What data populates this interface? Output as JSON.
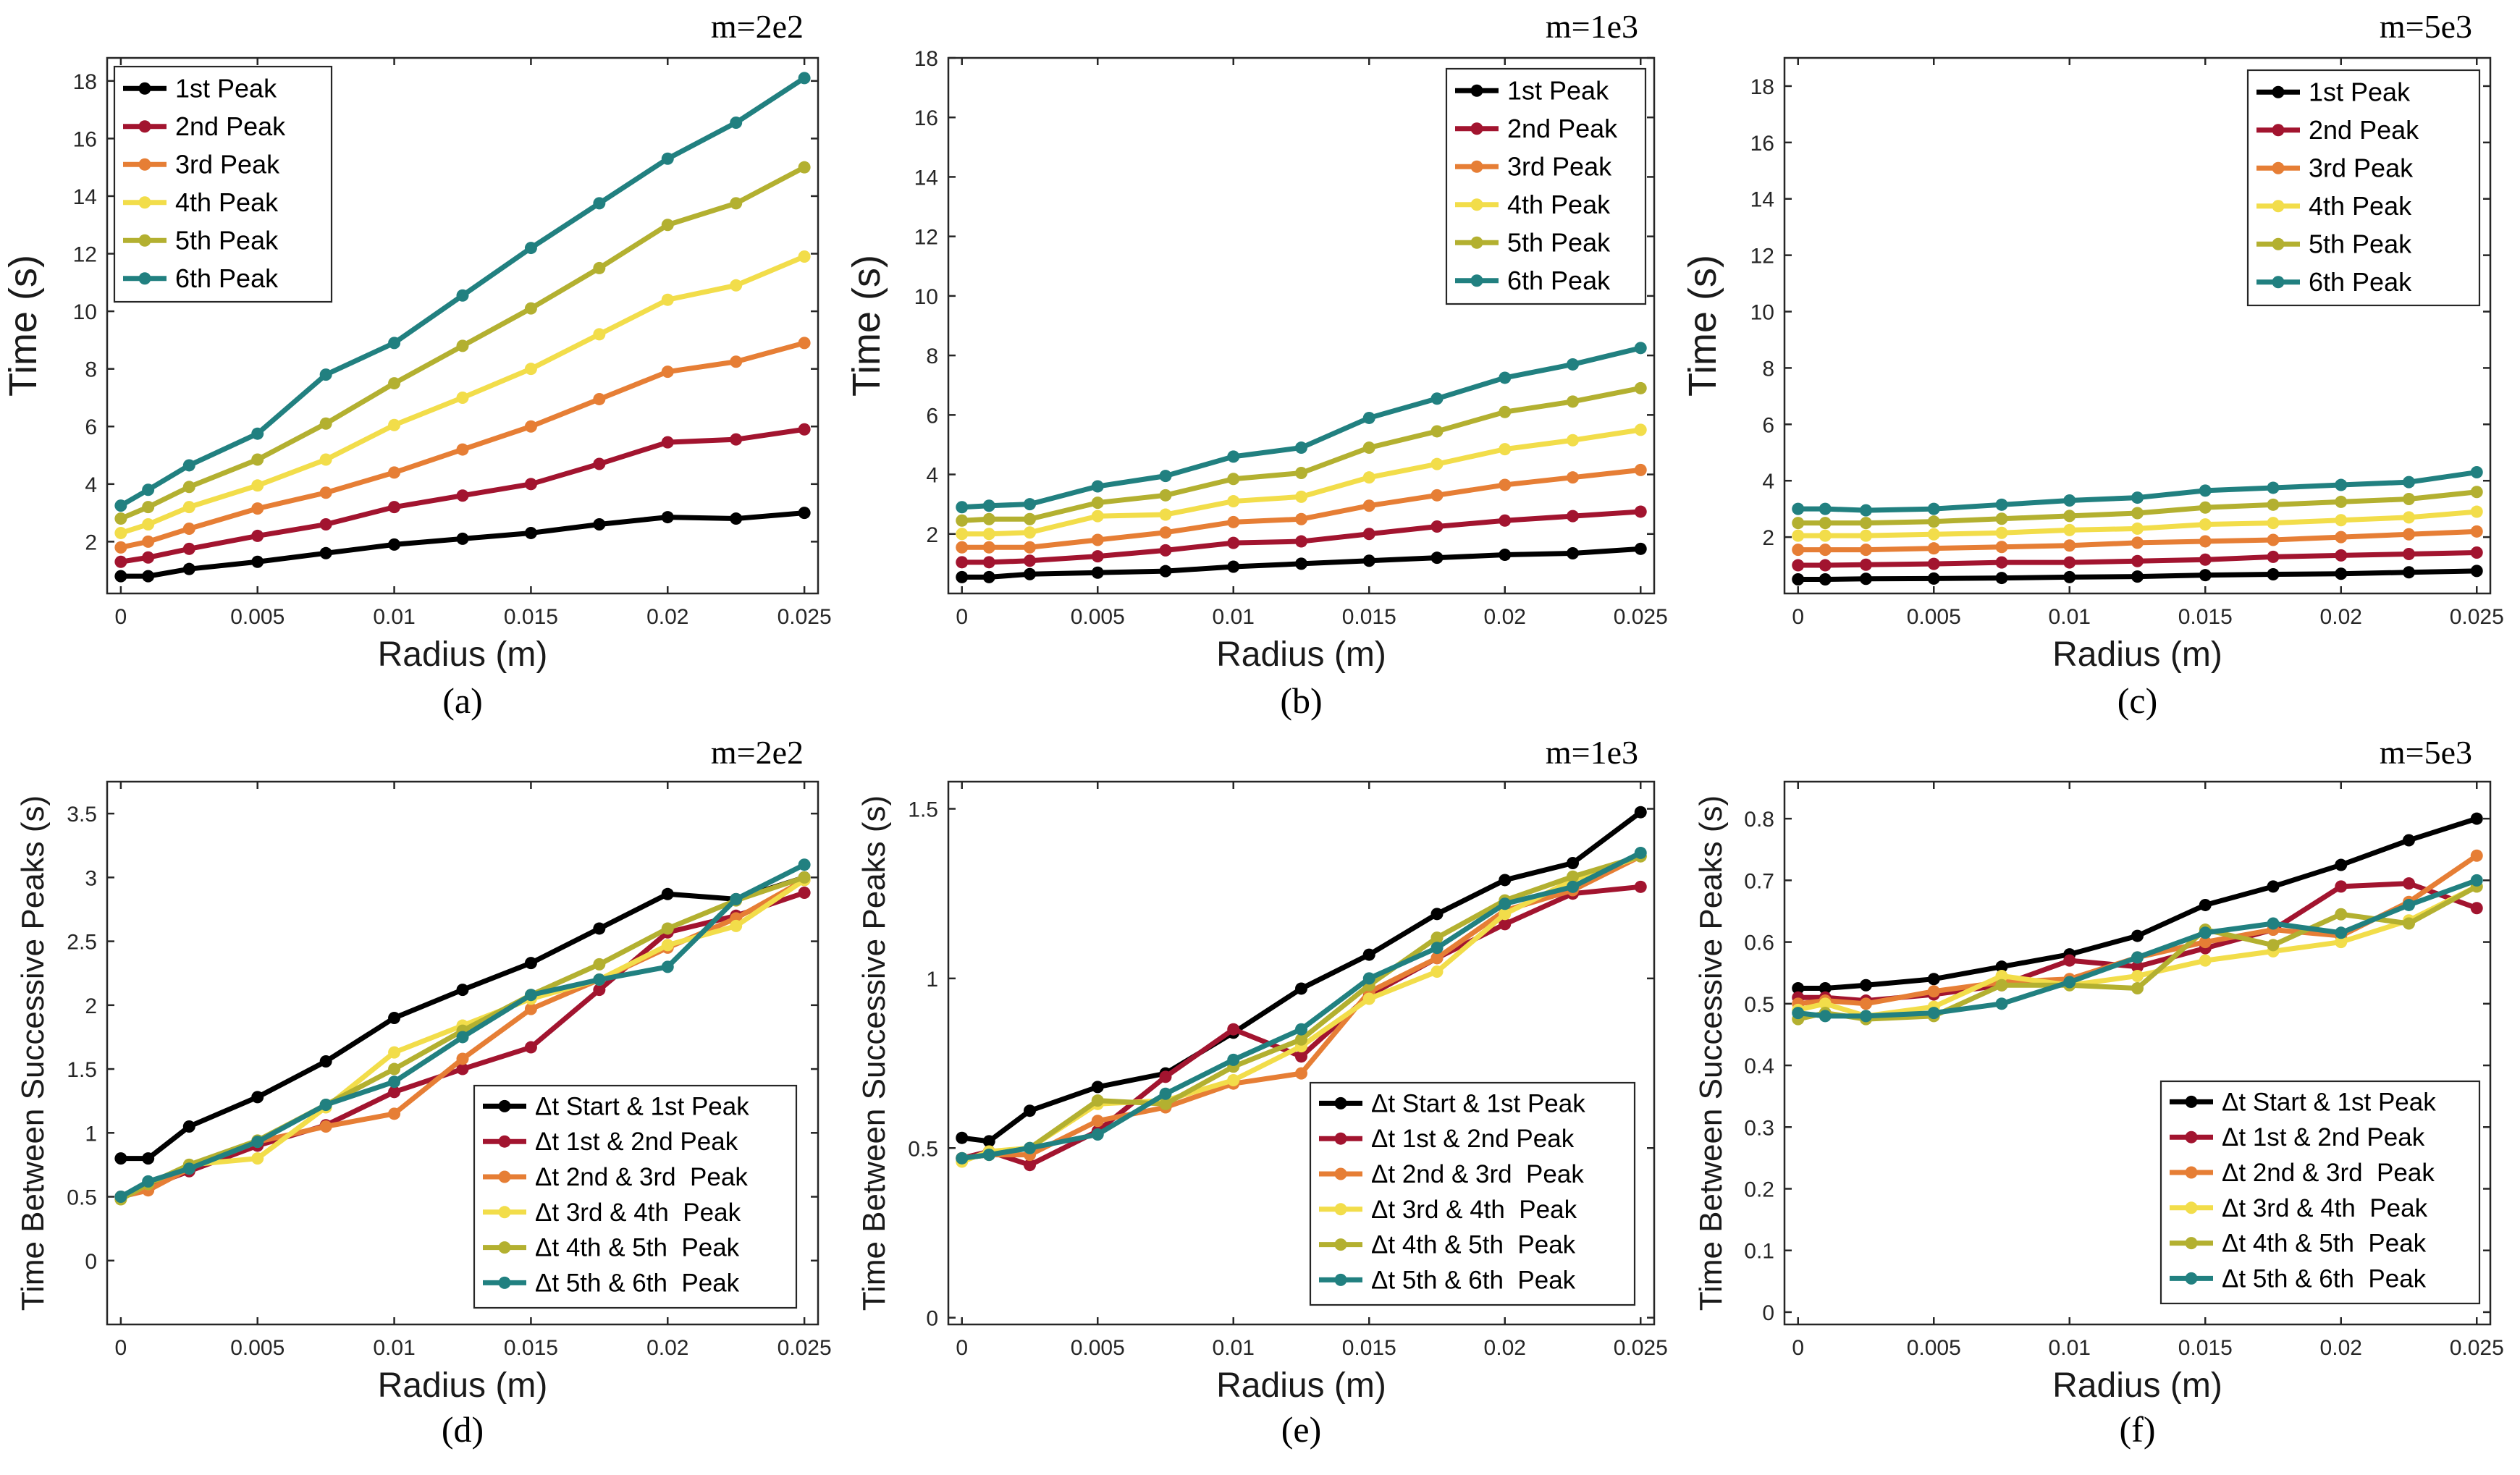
{
  "colors": {
    "black": "#000000",
    "crimson": "#a2142f",
    "orange": "#e67e35",
    "yellow": "#f2dd4a",
    "olive": "#b3b030",
    "teal": "#218080",
    "axis": "#262626",
    "tick_text": "#262626"
  },
  "chart_data": [
    {
      "type": "line",
      "panel": "(a)",
      "title": "m=2e2",
      "xlabel": "Radius (m)",
      "ylabel": "Time (s)",
      "xlim": [
        -0.0005,
        0.0255
      ],
      "ylim": [
        0.2,
        18.8
      ],
      "xticks": [
        0,
        0.005,
        0.01,
        0.015,
        0.02,
        0.025
      ],
      "xtick_labels": [
        "0",
        "0.005",
        "0.01",
        "0.015",
        "0.02",
        "0.025"
      ],
      "yticks": [
        2,
        4,
        6,
        8,
        10,
        12,
        14,
        16,
        18
      ],
      "ytick_labels": [
        "2",
        "4",
        "6",
        "8",
        "10",
        "12",
        "14",
        "16",
        "18"
      ],
      "legend": "top-left",
      "x": [
        0,
        0.001,
        0.0025,
        0.005,
        0.0075,
        0.01,
        0.0125,
        0.015,
        0.0175,
        0.02,
        0.0225,
        0.025
      ],
      "series": [
        {
          "name": "1st Peak",
          "color": "black",
          "values": [
            0.8,
            0.8,
            1.05,
            1.3,
            1.6,
            1.9,
            2.1,
            2.3,
            2.6,
            2.85,
            2.8,
            3.0
          ]
        },
        {
          "name": "2nd Peak",
          "color": "crimson",
          "values": [
            1.3,
            1.45,
            1.75,
            2.2,
            2.6,
            3.2,
            3.6,
            4.0,
            4.7,
            5.45,
            5.55,
            5.9
          ]
        },
        {
          "name": "3rd Peak",
          "color": "orange",
          "values": [
            1.8,
            2.0,
            2.45,
            3.15,
            3.7,
            4.4,
            5.2,
            6.0,
            6.95,
            7.9,
            8.25,
            8.9
          ]
        },
        {
          "name": "4th Peak",
          "color": "yellow",
          "values": [
            2.3,
            2.6,
            3.2,
            3.95,
            4.85,
            6.05,
            7.0,
            8.0,
            9.2,
            10.4,
            10.9,
            11.9
          ]
        },
        {
          "name": "5th Peak",
          "color": "olive",
          "values": [
            2.8,
            3.2,
            3.9,
            4.85,
            6.1,
            7.5,
            8.8,
            10.1,
            11.5,
            13.0,
            13.75,
            15.0
          ]
        },
        {
          "name": "6th Peak",
          "color": "teal",
          "values": [
            3.25,
            3.8,
            4.65,
            5.75,
            7.8,
            8.9,
            10.55,
            12.2,
            13.75,
            15.3,
            16.55,
            18.1
          ]
        }
      ]
    },
    {
      "type": "line",
      "panel": "(b)",
      "title": "m=1e3",
      "xlabel": "Radius (m)",
      "ylabel": "Time (s)",
      "xlim": [
        -0.0005,
        0.0255
      ],
      "ylim": [
        0,
        18
      ],
      "xticks": [
        0,
        0.005,
        0.01,
        0.015,
        0.02,
        0.025
      ],
      "xtick_labels": [
        "0",
        "0.005",
        "0.01",
        "0.015",
        "0.02",
        "0.025"
      ],
      "yticks": [
        2,
        4,
        6,
        8,
        10,
        12,
        14,
        16,
        18
      ],
      "ytick_labels": [
        "2",
        "4",
        "6",
        "8",
        "10",
        "12",
        "14",
        "16",
        "18"
      ],
      "legend": "top-right",
      "x": [
        0,
        0.001,
        0.0025,
        0.005,
        0.0075,
        0.01,
        0.0125,
        0.015,
        0.0175,
        0.02,
        0.0225,
        0.025
      ],
      "series": [
        {
          "name": "1st Peak",
          "color": "black",
          "values": [
            0.55,
            0.55,
            0.65,
            0.7,
            0.75,
            0.9,
            1.0,
            1.1,
            1.2,
            1.3,
            1.35,
            1.5
          ]
        },
        {
          "name": "2nd Peak",
          "color": "crimson",
          "values": [
            1.05,
            1.05,
            1.1,
            1.25,
            1.45,
            1.7,
            1.75,
            2.0,
            2.25,
            2.45,
            2.6,
            2.75
          ]
        },
        {
          "name": "3rd Peak",
          "color": "orange",
          "values": [
            1.55,
            1.55,
            1.55,
            1.8,
            2.05,
            2.4,
            2.5,
            2.95,
            3.3,
            3.65,
            3.9,
            4.15
          ]
        },
        {
          "name": "4th Peak",
          "color": "yellow",
          "values": [
            2.0,
            2.0,
            2.05,
            2.6,
            2.65,
            3.1,
            3.25,
            3.9,
            4.35,
            4.85,
            5.15,
            5.5
          ]
        },
        {
          "name": "5th Peak",
          "color": "olive",
          "values": [
            2.45,
            2.5,
            2.5,
            3.05,
            3.3,
            3.85,
            4.05,
            4.9,
            5.45,
            6.1,
            6.45,
            6.9
          ]
        },
        {
          "name": "6th Peak",
          "color": "teal",
          "values": [
            2.9,
            2.95,
            3.0,
            3.6,
            3.95,
            4.6,
            4.9,
            5.9,
            6.55,
            7.25,
            7.7,
            8.25
          ]
        }
      ]
    },
    {
      "type": "line",
      "panel": "(c)",
      "title": "m=5e3",
      "xlabel": "Radius (m)",
      "ylabel": "Time (s)",
      "xlim": [
        -0.0005,
        0.0255
      ],
      "ylim": [
        0,
        19
      ],
      "xticks": [
        0,
        0.005,
        0.01,
        0.015,
        0.02,
        0.025
      ],
      "xtick_labels": [
        "0",
        "0.005",
        "0.01",
        "0.015",
        "0.02",
        "0.025"
      ],
      "yticks": [
        2,
        4,
        6,
        8,
        10,
        12,
        14,
        16,
        18
      ],
      "ytick_labels": [
        "2",
        "4",
        "6",
        "8",
        "10",
        "12",
        "14",
        "16",
        "18"
      ],
      "legend": "top-right",
      "x": [
        0,
        0.001,
        0.0025,
        0.005,
        0.0075,
        0.01,
        0.0125,
        0.015,
        0.0175,
        0.02,
        0.0225,
        0.025
      ],
      "series": [
        {
          "name": "1st Peak",
          "color": "black",
          "values": [
            0.5,
            0.5,
            0.52,
            0.53,
            0.55,
            0.58,
            0.6,
            0.65,
            0.68,
            0.7,
            0.75,
            0.8
          ]
        },
        {
          "name": "2nd Peak",
          "color": "crimson",
          "values": [
            1.0,
            1.0,
            1.02,
            1.05,
            1.1,
            1.1,
            1.15,
            1.2,
            1.3,
            1.35,
            1.4,
            1.45
          ]
        },
        {
          "name": "3rd Peak",
          "color": "orange",
          "values": [
            1.55,
            1.55,
            1.55,
            1.6,
            1.65,
            1.7,
            1.8,
            1.85,
            1.9,
            2.0,
            2.1,
            2.2
          ]
        },
        {
          "name": "4th Peak",
          "color": "yellow",
          "values": [
            2.05,
            2.05,
            2.05,
            2.1,
            2.15,
            2.25,
            2.3,
            2.45,
            2.5,
            2.6,
            2.7,
            2.9
          ]
        },
        {
          "name": "5th Peak",
          "color": "olive",
          "values": [
            2.5,
            2.5,
            2.5,
            2.55,
            2.65,
            2.75,
            2.85,
            3.05,
            3.15,
            3.25,
            3.35,
            3.6
          ]
        },
        {
          "name": "6th Peak",
          "color": "teal",
          "values": [
            3.0,
            3.0,
            2.95,
            3.0,
            3.15,
            3.3,
            3.4,
            3.65,
            3.75,
            3.85,
            3.95,
            4.3
          ]
        }
      ]
    },
    {
      "type": "line",
      "panel": "(d)",
      "title": "m=2e2",
      "xlabel": "Radius (m)",
      "ylabel": "Time Between Successive Peaks (s)",
      "xlim": [
        -0.0005,
        0.0255
      ],
      "ylim": [
        -0.5,
        3.75
      ],
      "xticks": [
        0,
        0.005,
        0.01,
        0.015,
        0.02,
        0.025
      ],
      "xtick_labels": [
        "0",
        "0.005",
        "0.01",
        "0.015",
        "0.02",
        "0.025"
      ],
      "yticks": [
        0,
        0.5,
        1,
        1.5,
        2,
        2.5,
        3,
        3.5
      ],
      "ytick_labels": [
        "0",
        "0.5",
        "1",
        "1.5",
        "2",
        "2.5",
        "3",
        "3.5"
      ],
      "legend": "bottom-right",
      "x": [
        0,
        0.001,
        0.0025,
        0.005,
        0.0075,
        0.01,
        0.0125,
        0.015,
        0.0175,
        0.02,
        0.0225,
        0.025
      ],
      "series": [
        {
          "name": "Δt Start & 1st Peak",
          "color": "black",
          "values": [
            0.8,
            0.8,
            1.05,
            1.28,
            1.56,
            1.9,
            2.12,
            2.33,
            2.6,
            2.87,
            2.83,
            3.0
          ]
        },
        {
          "name": "Δt 1st & 2nd Peak",
          "color": "crimson",
          "values": [
            0.5,
            0.58,
            0.7,
            0.9,
            1.06,
            1.32,
            1.5,
            1.67,
            2.12,
            2.57,
            2.7,
            2.88
          ]
        },
        {
          "name": "Δt 2nd & 3rd  Peak",
          "color": "orange",
          "values": [
            0.5,
            0.55,
            0.72,
            0.93,
            1.05,
            1.15,
            1.58,
            1.97,
            2.2,
            2.45,
            2.68,
            2.98
          ]
        },
        {
          "name": "Δt 3rd & 4th  Peak",
          "color": "yellow",
          "values": [
            0.48,
            0.6,
            0.75,
            0.8,
            1.2,
            1.63,
            1.84,
            2.05,
            2.2,
            2.47,
            2.62,
            2.98
          ]
        },
        {
          "name": "Δt 4th & 5th  Peak",
          "color": "olive",
          "values": [
            0.48,
            0.6,
            0.75,
            0.94,
            1.22,
            1.5,
            1.8,
            2.08,
            2.32,
            2.6,
            2.82,
            3.0
          ]
        },
        {
          "name": "Δt 5th & 6th  Peak",
          "color": "teal",
          "values": [
            0.5,
            0.62,
            0.72,
            0.93,
            1.22,
            1.4,
            1.75,
            2.08,
            2.2,
            2.3,
            2.83,
            3.1
          ]
        }
      ]
    },
    {
      "type": "line",
      "panel": "(e)",
      "title": "m=1e3",
      "xlabel": "Radius (m)",
      "ylabel": "Time Between Successive Peaks (s)",
      "xlim": [
        -0.0005,
        0.0255
      ],
      "ylim": [
        -0.02,
        1.58
      ],
      "xticks": [
        0,
        0.005,
        0.01,
        0.015,
        0.02,
        0.025
      ],
      "xtick_labels": [
        "0",
        "0.005",
        "0.01",
        "0.015",
        "0.02",
        "0.025"
      ],
      "yticks": [
        0,
        0.5,
        1,
        1.5
      ],
      "ytick_labels": [
        "0",
        "0.5",
        "1",
        "1.5"
      ],
      "legend": "bottom-right",
      "x": [
        0,
        0.001,
        0.0025,
        0.005,
        0.0075,
        0.01,
        0.0125,
        0.015,
        0.0175,
        0.02,
        0.0225,
        0.025
      ],
      "series": [
        {
          "name": "Δt Start & 1st Peak",
          "color": "black",
          "values": [
            0.53,
            0.52,
            0.61,
            0.68,
            0.72,
            0.84,
            0.97,
            1.07,
            1.19,
            1.29,
            1.34,
            1.49
          ]
        },
        {
          "name": "Δt 1st & 2nd Peak",
          "color": "crimson",
          "values": [
            0.47,
            0.49,
            0.45,
            0.55,
            0.71,
            0.85,
            0.77,
            0.95,
            1.06,
            1.16,
            1.25,
            1.27
          ]
        },
        {
          "name": "Δt 2nd & 3rd  Peak",
          "color": "orange",
          "values": [
            0.47,
            0.48,
            0.48,
            0.58,
            0.62,
            0.69,
            0.72,
            0.96,
            1.06,
            1.2,
            1.26,
            1.36
          ]
        },
        {
          "name": "Δt 3rd & 4th  Peak",
          "color": "yellow",
          "values": [
            0.46,
            0.49,
            0.5,
            0.63,
            0.64,
            0.7,
            0.8,
            0.94,
            1.02,
            1.19,
            1.29,
            1.36
          ]
        },
        {
          "name": "Δt 4th & 5th  Peak",
          "color": "olive",
          "values": [
            0.47,
            0.48,
            0.5,
            0.64,
            0.63,
            0.74,
            0.82,
            0.98,
            1.12,
            1.23,
            1.3,
            1.36
          ]
        },
        {
          "name": "Δt 5th & 6th  Peak",
          "color": "teal",
          "values": [
            0.47,
            0.48,
            0.5,
            0.54,
            0.66,
            0.76,
            0.85,
            1.0,
            1.09,
            1.22,
            1.27,
            1.37
          ]
        }
      ]
    },
    {
      "type": "line",
      "panel": "(f)",
      "title": "m=5e3",
      "xlabel": "Radius (m)",
      "ylabel": "Time Between Successive Peaks (s)",
      "xlim": [
        -0.0005,
        0.0255
      ],
      "ylim": [
        -0.02,
        0.86
      ],
      "xticks": [
        0,
        0.005,
        0.01,
        0.015,
        0.02,
        0.025
      ],
      "xtick_labels": [
        "0",
        "0.005",
        "0.01",
        "0.015",
        "0.02",
        "0.025"
      ],
      "yticks": [
        0,
        0.1,
        0.2,
        0.3,
        0.4,
        0.5,
        0.6,
        0.7,
        0.8
      ],
      "ytick_labels": [
        "0",
        "0.1",
        "0.2",
        "0.3",
        "0.4",
        "0.5",
        "0.6",
        "0.7",
        "0.8"
      ],
      "legend": "bottom-right",
      "x": [
        0,
        0.001,
        0.0025,
        0.005,
        0.0075,
        0.01,
        0.0125,
        0.015,
        0.0175,
        0.02,
        0.0225,
        0.025
      ],
      "series": [
        {
          "name": "Δt Start & 1st Peak",
          "color": "black",
          "values": [
            0.525,
            0.525,
            0.53,
            0.54,
            0.56,
            0.58,
            0.61,
            0.66,
            0.69,
            0.725,
            0.765,
            0.8
          ]
        },
        {
          "name": "Δt 1st & 2nd Peak",
          "color": "crimson",
          "values": [
            0.51,
            0.51,
            0.505,
            0.515,
            0.53,
            0.57,
            0.56,
            0.59,
            0.62,
            0.69,
            0.695,
            0.655
          ]
        },
        {
          "name": "Δt 2nd & 3rd  Peak",
          "color": "orange",
          "values": [
            0.5,
            0.505,
            0.5,
            0.52,
            0.535,
            0.54,
            0.575,
            0.6,
            0.62,
            0.61,
            0.665,
            0.74
          ]
        },
        {
          "name": "Δt 3rd & 4th  Peak",
          "color": "yellow",
          "values": [
            0.49,
            0.5,
            0.48,
            0.495,
            0.545,
            0.53,
            0.545,
            0.57,
            0.585,
            0.6,
            0.635,
            0.69
          ]
        },
        {
          "name": "Δt 4th & 5th  Peak",
          "color": "olive",
          "values": [
            0.475,
            0.485,
            0.475,
            0.48,
            0.53,
            0.53,
            0.525,
            0.62,
            0.595,
            0.645,
            0.63,
            0.69
          ]
        },
        {
          "name": "Δt 5th & 6th  Peak",
          "color": "teal",
          "values": [
            0.485,
            0.48,
            0.48,
            0.485,
            0.5,
            0.535,
            0.575,
            0.615,
            0.63,
            0.615,
            0.66,
            0.7
          ]
        }
      ]
    }
  ]
}
